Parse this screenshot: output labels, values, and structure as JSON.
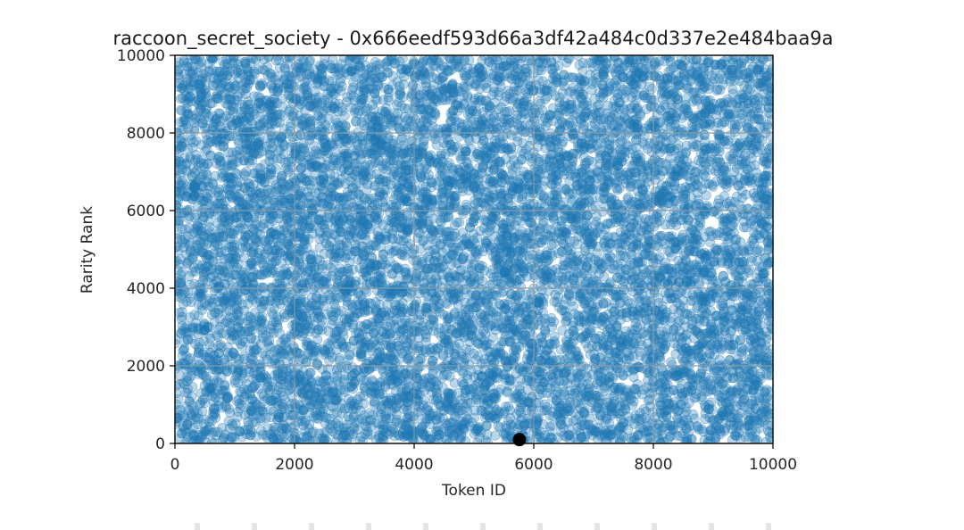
{
  "chart_data": {
    "type": "scatter",
    "title": "raccoon_secret_society - 0x666eedf593d66a3df42a484c0d337e2e484baa9a",
    "xlabel": "Token ID",
    "ylabel": "Rarity Rank",
    "xlim": [
      0,
      10000
    ],
    "ylim": [
      0,
      10000
    ],
    "xticks": [
      0,
      2000,
      4000,
      6000,
      8000,
      10000
    ],
    "yticks": [
      0,
      2000,
      4000,
      6000,
      8000,
      10000
    ],
    "grid": true,
    "series": [
      {
        "color": "#1f77b4",
        "alpha": 0.3,
        "distribution": "uniform",
        "count": 10000,
        "x_range": [
          0,
          10000
        ],
        "y_range": [
          0,
          10000
        ]
      }
    ],
    "highlight_point": {
      "x": 5760,
      "y": 100,
      "color": "#000000"
    }
  },
  "colors": {
    "series": "#1f77b4",
    "grid": "#b0b0b0",
    "axes": "#000000",
    "highlight": "#000000"
  }
}
